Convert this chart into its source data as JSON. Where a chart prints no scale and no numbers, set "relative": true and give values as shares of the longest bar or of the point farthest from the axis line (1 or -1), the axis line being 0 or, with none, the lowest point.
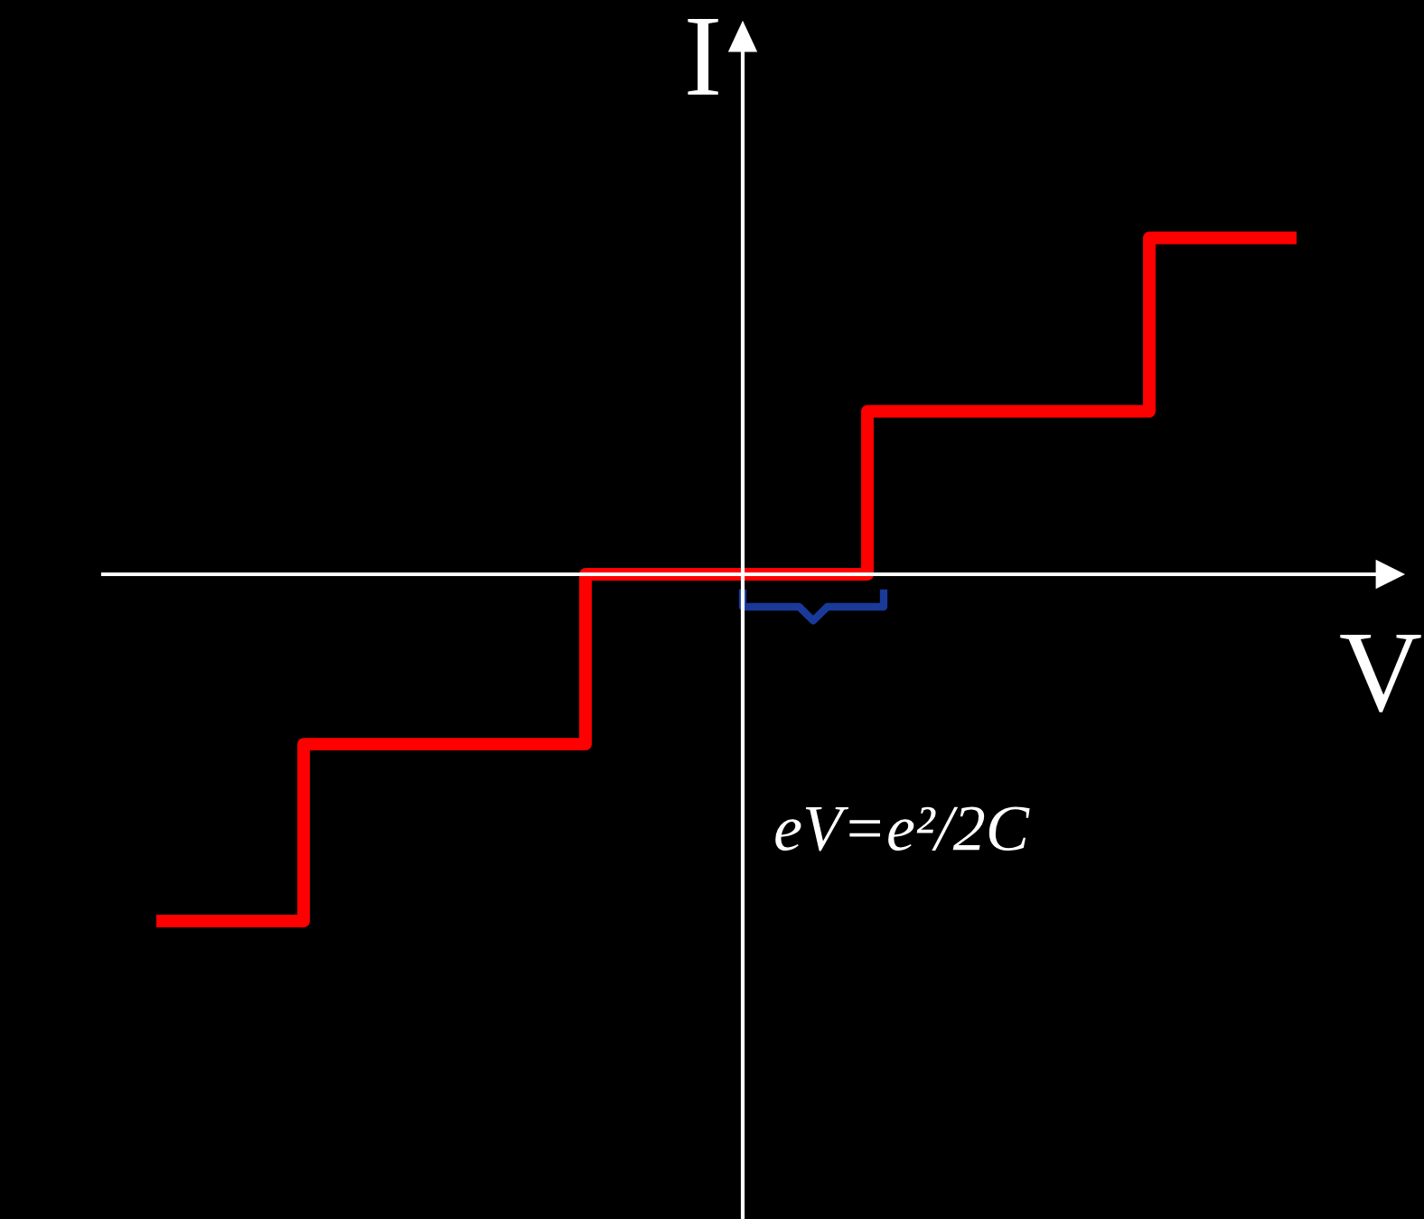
{
  "chart_data": {
    "type": "step",
    "relative": true,
    "categories": [
      null,
      null,
      null,
      null,
      null
    ],
    "series": [
      {
        "color": "#ff0000",
        "values": [
          -1,
          -0.49,
          0,
          0.47,
          0.97
        ]
      }
    ],
    "xlabel": "V",
    "ylabel": "I",
    "annotations": [
      "eV=e²/2C"
    ],
    "grid": false,
    "legend": false
  }
}
